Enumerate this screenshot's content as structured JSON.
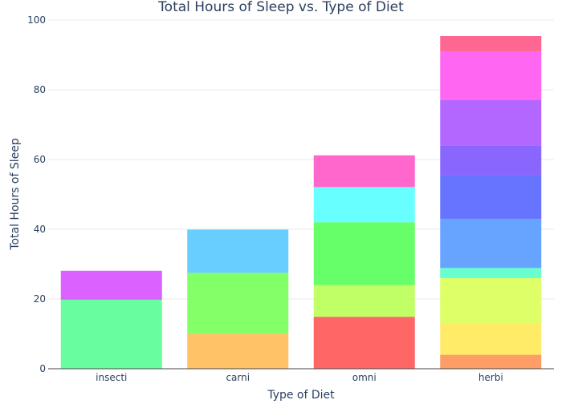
{
  "chart_data": {
    "type": "bar",
    "stacked": true,
    "title": "Total Hours of Sleep vs. Type of Diet",
    "xlabel": "Type of Diet",
    "ylabel": "Total Hours of Sleep",
    "ylim": [
      0,
      100
    ],
    "yticks": [
      0,
      20,
      40,
      60,
      80,
      100
    ],
    "grid": true,
    "legend": "none",
    "categories": [
      "insecti",
      "carni",
      "omni",
      "herbi"
    ],
    "stacks": [
      [
        {
          "value": 19.8,
          "color": "#4cff8c"
        },
        {
          "value": 8.3,
          "color": "#d546ff"
        }
      ],
      [
        {
          "value": 10.1,
          "color": "#ffb74c"
        },
        {
          "value": 17.4,
          "color": "#6dff4c"
        },
        {
          "value": 12.4,
          "color": "#4cc6ff"
        }
      ],
      [
        {
          "value": 14.9,
          "color": "#ff4c4c"
        },
        {
          "value": 9.1,
          "color": "#b6ff4c"
        },
        {
          "value": 18.0,
          "color": "#4cff4c"
        },
        {
          "value": 10.1,
          "color": "#4cffff"
        },
        {
          "value": 9.1,
          "color": "#ff4cc4"
        }
      ],
      [
        {
          "value": 4.0,
          "color": "#ff8c4c"
        },
        {
          "value": 9.1,
          "color": "#ffe84c"
        },
        {
          "value": 12.9,
          "color": "#d8ff4c"
        },
        {
          "value": 2.9,
          "color": "#4cffc4"
        },
        {
          "value": 14.1,
          "color": "#4c94ff"
        },
        {
          "value": 12.5,
          "color": "#4c5cff"
        },
        {
          "value": 8.5,
          "color": "#744cff"
        },
        {
          "value": 13.1,
          "color": "#a64cff"
        },
        {
          "value": 13.9,
          "color": "#ff4cf0"
        },
        {
          "value": 4.4,
          "color": "#ff4c80"
        }
      ]
    ]
  }
}
